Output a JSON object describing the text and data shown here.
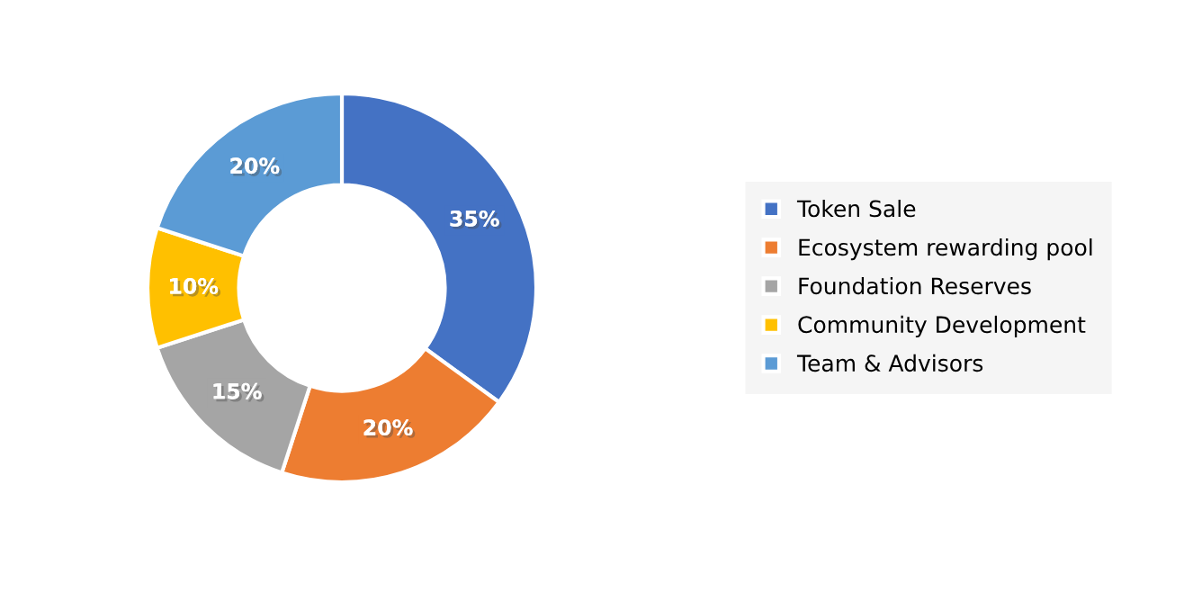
{
  "chart_data": {
    "type": "donut",
    "categories": [
      "Token Sale",
      "Ecosystem rewarding pool",
      "Foundation Reserves",
      "Community Development",
      "Team & Advisors"
    ],
    "values": [
      35,
      20,
      15,
      10,
      20
    ],
    "value_labels": [
      "35%",
      "20%",
      "15%",
      "10%",
      "20%"
    ],
    "colors": [
      "#4472c4",
      "#ed7d31",
      "#a5a5a5",
      "#ffc000",
      "#5b9bd5"
    ],
    "legend": "right"
  }
}
